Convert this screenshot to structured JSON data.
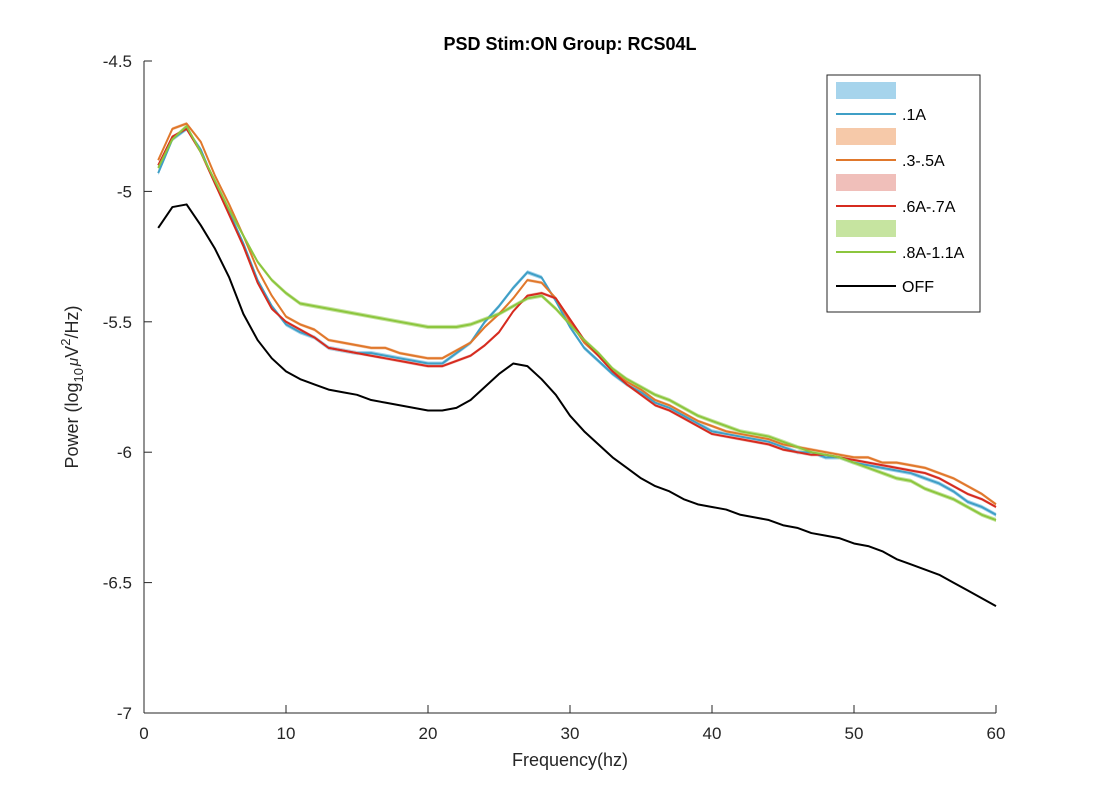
{
  "chart_data": {
    "type": "line",
    "title": "PSD Stim:ON Group: RCS04L",
    "xlabel": "Frequency(hz)",
    "ylabel": {
      "prefix": "Power (log",
      "sub": "10",
      "mu": "μ",
      "v": "V",
      "sup": "2",
      "suffix": "/Hz)"
    },
    "xlim": [
      0,
      60
    ],
    "ylim": [
      -7,
      -4.5
    ],
    "xticks": [
      0,
      10,
      20,
      30,
      40,
      50,
      60
    ],
    "xtick_labels": [
      "0",
      "10",
      "20",
      "30",
      "40",
      "50",
      "60"
    ],
    "yticks": [
      -7,
      -6.5,
      -6,
      -5.5,
      -5,
      -4.5
    ],
    "ytick_labels": [
      "-7",
      "-6.5",
      "-6",
      "-5.5",
      "-5",
      "-4.5"
    ],
    "grid": false,
    "legend_position": "top-right",
    "x": [
      1,
      2,
      3,
      4,
      5,
      6,
      7,
      8,
      9,
      10,
      11,
      12,
      13,
      14,
      15,
      16,
      17,
      18,
      19,
      20,
      21,
      22,
      23,
      24,
      25,
      26,
      27,
      28,
      29,
      30,
      31,
      32,
      33,
      34,
      35,
      36,
      37,
      38,
      39,
      40,
      41,
      42,
      43,
      44,
      45,
      46,
      47,
      48,
      49,
      50,
      51,
      52,
      53,
      54,
      55,
      56,
      57,
      58,
      59,
      60
    ],
    "series": [
      {
        "name": ".1A",
        "color": "#3f9fc6",
        "band_color": "#a6d4ec",
        "band_width": 0.008,
        "values": [
          -4.93,
          -4.8,
          -4.76,
          -4.84,
          -4.97,
          -5.08,
          -5.2,
          -5.34,
          -5.44,
          -5.51,
          -5.54,
          -5.56,
          -5.6,
          -5.61,
          -5.62,
          -5.62,
          -5.63,
          -5.64,
          -5.65,
          -5.66,
          -5.66,
          -5.62,
          -5.58,
          -5.5,
          -5.44,
          -5.37,
          -5.31,
          -5.33,
          -5.42,
          -5.52,
          -5.6,
          -5.65,
          -5.7,
          -5.74,
          -5.77,
          -5.81,
          -5.83,
          -5.86,
          -5.89,
          -5.92,
          -5.93,
          -5.94,
          -5.95,
          -5.96,
          -5.98,
          -6.0,
          -6.0,
          -6.02,
          -6.02,
          -6.04,
          -6.05,
          -6.06,
          -6.07,
          -6.08,
          -6.1,
          -6.12,
          -6.15,
          -6.19,
          -6.21,
          -6.24
        ]
      },
      {
        "name": ".3-.5A",
        "color": "#e0782c",
        "band_color": "#f6c9a9",
        "band_width": 0.006,
        "values": [
          -4.88,
          -4.76,
          -4.74,
          -4.81,
          -4.94,
          -5.05,
          -5.17,
          -5.3,
          -5.4,
          -5.48,
          -5.51,
          -5.53,
          -5.57,
          -5.58,
          -5.59,
          -5.6,
          -5.6,
          -5.62,
          -5.63,
          -5.64,
          -5.64,
          -5.61,
          -5.58,
          -5.52,
          -5.47,
          -5.41,
          -5.34,
          -5.35,
          -5.41,
          -5.5,
          -5.58,
          -5.63,
          -5.69,
          -5.73,
          -5.76,
          -5.8,
          -5.82,
          -5.85,
          -5.88,
          -5.9,
          -5.92,
          -5.93,
          -5.94,
          -5.95,
          -5.97,
          -5.98,
          -5.99,
          -6.0,
          -6.01,
          -6.02,
          -6.02,
          -6.04,
          -6.04,
          -6.05,
          -6.06,
          -6.08,
          -6.1,
          -6.13,
          -6.16,
          -6.2
        ]
      },
      {
        "name": ".6A-.7A",
        "color": "#d62b1f",
        "band_color": "#f0bfba",
        "band_width": 0.006,
        "values": [
          -4.9,
          -4.79,
          -4.76,
          -4.85,
          -4.97,
          -5.09,
          -5.21,
          -5.35,
          -5.45,
          -5.5,
          -5.53,
          -5.56,
          -5.6,
          -5.61,
          -5.62,
          -5.63,
          -5.64,
          -5.65,
          -5.66,
          -5.67,
          -5.67,
          -5.65,
          -5.63,
          -5.59,
          -5.54,
          -5.46,
          -5.4,
          -5.39,
          -5.41,
          -5.49,
          -5.57,
          -5.63,
          -5.69,
          -5.74,
          -5.78,
          -5.82,
          -5.84,
          -5.87,
          -5.9,
          -5.93,
          -5.94,
          -5.95,
          -5.96,
          -5.97,
          -5.99,
          -6.0,
          -6.01,
          -6.01,
          -6.02,
          -6.03,
          -6.04,
          -6.05,
          -6.06,
          -6.07,
          -6.08,
          -6.1,
          -6.13,
          -6.16,
          -6.18,
          -6.21
        ]
      },
      {
        "name": ".8A-1.1A",
        "color": "#8cc63e",
        "band_color": "#c6e4a0",
        "band_width": 0.008,
        "values": [
          -4.91,
          -4.8,
          -4.75,
          -4.85,
          -4.96,
          -5.07,
          -5.17,
          -5.27,
          -5.34,
          -5.39,
          -5.43,
          -5.44,
          -5.45,
          -5.46,
          -5.47,
          -5.48,
          -5.49,
          -5.5,
          -5.51,
          -5.52,
          -5.52,
          -5.52,
          -5.51,
          -5.49,
          -5.47,
          -5.44,
          -5.41,
          -5.4,
          -5.45,
          -5.51,
          -5.57,
          -5.62,
          -5.68,
          -5.72,
          -5.75,
          -5.78,
          -5.8,
          -5.83,
          -5.86,
          -5.88,
          -5.9,
          -5.92,
          -5.93,
          -5.94,
          -5.96,
          -5.98,
          -6.0,
          -6.01,
          -6.02,
          -6.04,
          -6.06,
          -6.08,
          -6.1,
          -6.11,
          -6.14,
          -6.16,
          -6.18,
          -6.21,
          -6.24,
          -6.26
        ]
      },
      {
        "name": "OFF",
        "color": "#000000",
        "values": [
          -5.14,
          -5.06,
          -5.05,
          -5.13,
          -5.22,
          -5.33,
          -5.47,
          -5.57,
          -5.64,
          -5.69,
          -5.72,
          -5.74,
          -5.76,
          -5.77,
          -5.78,
          -5.8,
          -5.81,
          -5.82,
          -5.83,
          -5.84,
          -5.84,
          -5.83,
          -5.8,
          -5.75,
          -5.7,
          -5.66,
          -5.67,
          -5.72,
          -5.78,
          -5.86,
          -5.92,
          -5.97,
          -6.02,
          -6.06,
          -6.1,
          -6.13,
          -6.15,
          -6.18,
          -6.2,
          -6.21,
          -6.22,
          -6.24,
          -6.25,
          -6.26,
          -6.28,
          -6.29,
          -6.31,
          -6.32,
          -6.33,
          -6.35,
          -6.36,
          -6.38,
          -6.41,
          -6.43,
          -6.45,
          -6.47,
          -6.5,
          -6.53,
          -6.56,
          -6.59
        ]
      }
    ]
  }
}
